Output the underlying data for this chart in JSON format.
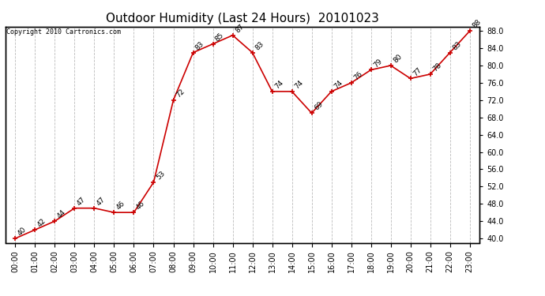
{
  "title": "Outdoor Humidity (Last 24 Hours)  20101023",
  "copyright": "Copyright 2010 Cartronics.com",
  "x_labels": [
    "00:00",
    "01:00",
    "02:00",
    "03:00",
    "04:00",
    "05:00",
    "06:00",
    "07:00",
    "08:00",
    "09:00",
    "10:00",
    "11:00",
    "12:00",
    "13:00",
    "14:00",
    "15:00",
    "16:00",
    "17:00",
    "18:00",
    "19:00",
    "20:00",
    "21:00",
    "22:00",
    "23:00"
  ],
  "y_values": [
    40,
    42,
    44,
    47,
    47,
    46,
    46,
    53,
    72,
    83,
    85,
    87,
    83,
    74,
    74,
    69,
    74,
    76,
    79,
    80,
    77,
    78,
    83,
    88
  ],
  "ylim_min": 39.0,
  "ylim_max": 89.0,
  "line_color": "#cc0000",
  "marker": "+",
  "background_color": "#ffffff",
  "grid_color": "#bbbbbb",
  "title_fontsize": 11,
  "annotation_fontsize": 6.5,
  "copyright_fontsize": 6,
  "tick_fontsize": 7,
  "ytick_start": 40,
  "ytick_end": 89,
  "ytick_step": 4
}
